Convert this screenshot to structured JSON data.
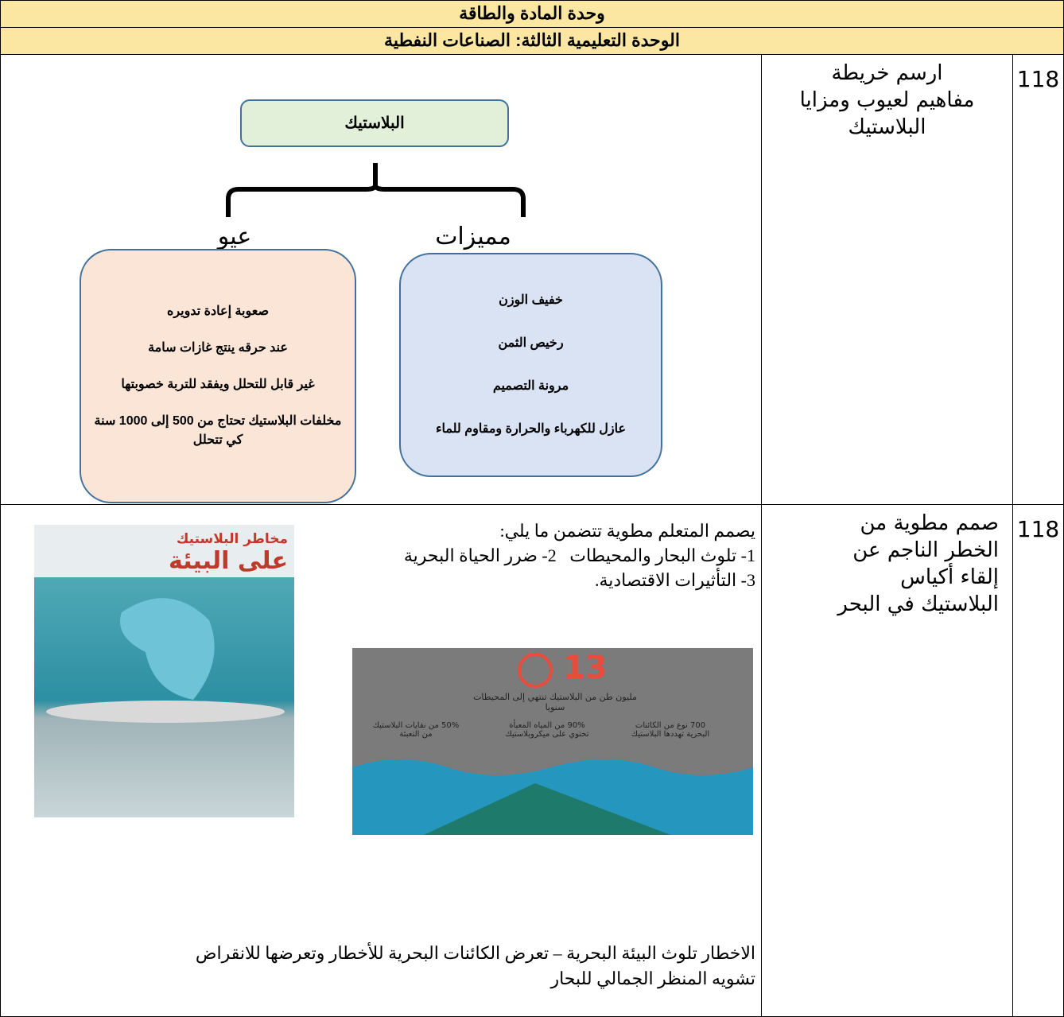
{
  "header": {
    "title": "وحدة المادة والطاقة",
    "subtitle": "الوحدة التعليمية الثالثة: الصناعات النفطية"
  },
  "rows": [
    {
      "number": "118",
      "task": "ارسم خريطة مفاهيم لعيوب ومزايا البلاستيك",
      "concept_map": {
        "root": "البلاستيك",
        "branches": [
          {
            "label": "مميزات",
            "items": [
              "خفيف الوزن",
              "رخيص الثمن",
              "مرونة التصميم",
              "عازل للكهرباء والحرارة ومقاوم للماء"
            ]
          },
          {
            "label": "عيو",
            "items": [
              "صعوبة إعادة تدويره",
              "عند حرقه ينتج غازات سامة",
              "غير قابل للتحلل ويفقد للتربة خصوبتها",
              "مخلفات البلاستيك تحتاج من 500 إلى 1000 سنة كي تتحلل"
            ]
          }
        ]
      }
    },
    {
      "number": "118",
      "task": "صمم مطوية من الخطر الناجم عن إلقاء أكياس البلاستيك في البحر",
      "intro": "يصمم المتعلم مطوية تتضمن ما يلي:",
      "points": [
        "1- تلوث البحار والمحيطات",
        "2- ضرر الحياة البحرية",
        "3- التأثيرات الاقتصادية."
      ],
      "poster": {
        "title": [
          "مخاطر البلاستيك",
          "على البيئة"
        ]
      },
      "infographic": {
        "headline": "13",
        "caption": "مليون طن من البلاستيك تنتهي إلى المحيطات سنويا",
        "stats": [
          "700 نوع من الكائنات البحرية تهددها البلاستيك",
          "90% من المياه المعبأة تحتوي على ميكروبلاستيك",
          "50% من نفايات البلاستيك من التعبئة"
        ]
      },
      "conclusion": [
        "الاخطار تلوث البيئة البحرية – تعرض الكائنات البحرية للأخطار وتعرضها للانقراض",
        "تشويه المنظر الجمالي للبحار"
      ]
    }
  ]
}
